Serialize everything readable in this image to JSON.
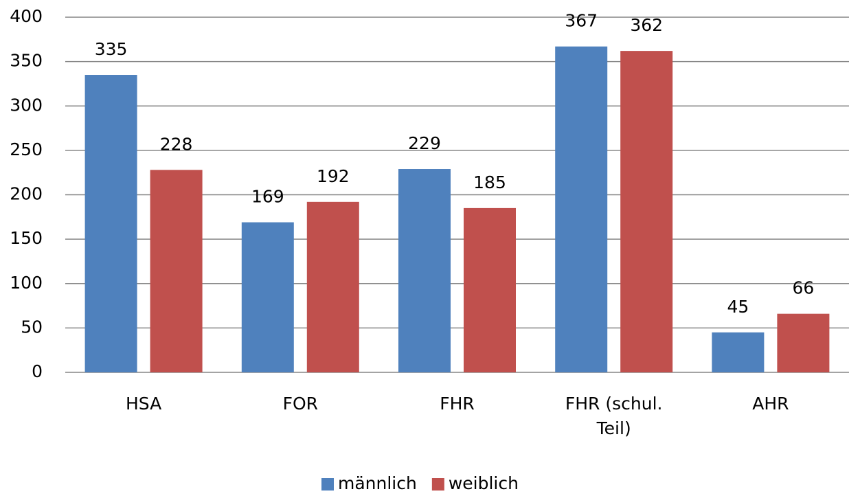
{
  "chart_data": {
    "type": "bar",
    "categories": [
      "HSA",
      "FOR",
      "FHR",
      "FHR (schul. Teil)",
      "AHR"
    ],
    "series": [
      {
        "name": "männlich",
        "color": "#4f81bd",
        "values": [
          335,
          169,
          229,
          367,
          45
        ]
      },
      {
        "name": "weiblich",
        "color": "#c0504d",
        "values": [
          228,
          192,
          185,
          362,
          66
        ]
      }
    ],
    "ylim": [
      0,
      400
    ],
    "yticks": [
      0,
      50,
      100,
      150,
      200,
      250,
      300,
      350,
      400
    ],
    "grid": true,
    "legend": "bottom"
  }
}
